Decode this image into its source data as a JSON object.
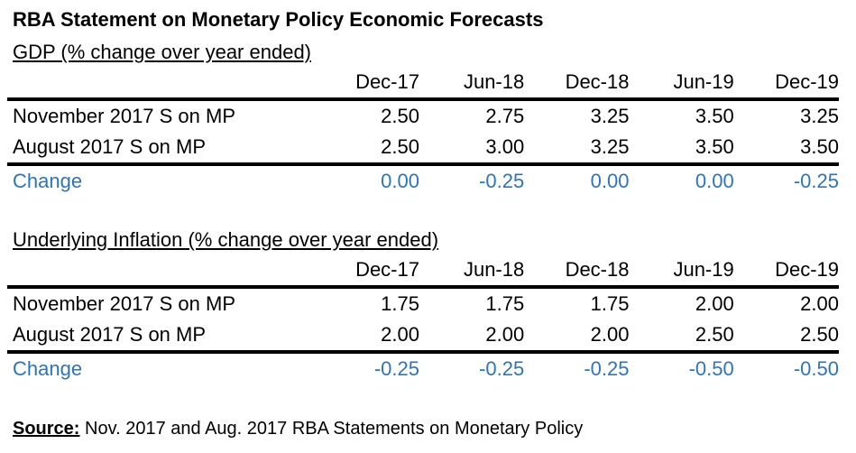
{
  "title": "RBA Statement on Monetary Policy Economic Forecasts",
  "columns": [
    "Dec-17",
    "Jun-18",
    "Dec-18",
    "Jun-19",
    "Dec-19"
  ],
  "gdp": {
    "heading": "GDP (% change over year ended)",
    "rows": [
      {
        "label": "November 2017 S on MP",
        "values": [
          "2.50",
          "2.75",
          "3.25",
          "3.50",
          "3.25"
        ]
      },
      {
        "label": "August 2017 S on MP",
        "values": [
          "2.50",
          "3.00",
          "3.25",
          "3.50",
          "3.50"
        ]
      },
      {
        "label": "Change",
        "values": [
          "0.00",
          "-0.25",
          "0.00",
          "0.00",
          "-0.25"
        ]
      }
    ]
  },
  "inflation": {
    "heading": "Underlying Inflation (% change over year ended)",
    "rows": [
      {
        "label": "November 2017 S on MP",
        "values": [
          "1.75",
          "1.75",
          "1.75",
          "2.00",
          "2.00"
        ]
      },
      {
        "label": "August 2017 S on MP",
        "values": [
          "2.00",
          "2.00",
          "2.00",
          "2.50",
          "2.50"
        ]
      },
      {
        "label": "Change",
        "values": [
          "-0.25",
          "-0.25",
          "-0.25",
          "-0.50",
          "-0.50"
        ]
      }
    ]
  },
  "source": {
    "label": "Source:",
    "text": " Nov. 2017 and Aug. 2017 RBA Statements on Monetary Policy"
  },
  "colors": {
    "change_text": "#2e75b6",
    "rule": "#000000"
  }
}
